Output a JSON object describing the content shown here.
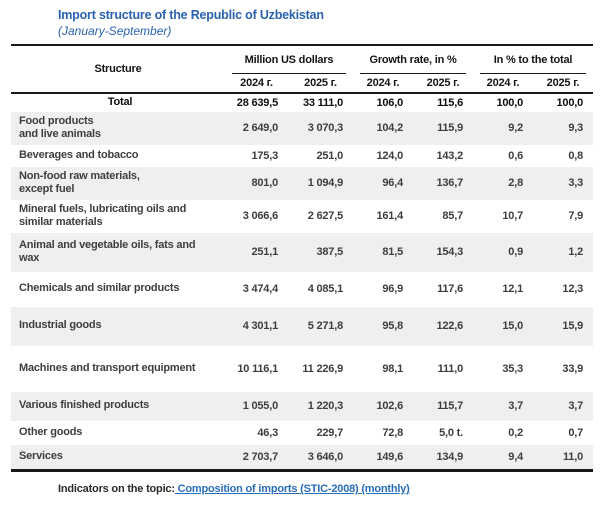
{
  "title": "Import structure of the Republic of Uzbekistan",
  "subtitle": "(January-September)",
  "colors": {
    "title_blue": "#2a62ae",
    "link_blue": "#2a6db8",
    "row_alt_bg": "#efefef",
    "border_dark": "#191919",
    "body_text": "#3e3e3e"
  },
  "table": {
    "structure_header": "Structure",
    "groups": [
      {
        "label": "Million US dollars",
        "years": [
          "2024 г.",
          "2025 г."
        ]
      },
      {
        "label": "Growth rate, in %",
        "years": [
          "2024 г.",
          "2025 г."
        ]
      },
      {
        "label": "In % to the total",
        "years": [
          "2024 г.",
          "2025 г."
        ]
      }
    ],
    "rows": [
      {
        "label": "Total",
        "is_total": true,
        "values": [
          "28 639,5",
          "33 111,0",
          "106,0",
          "115,6",
          "100,0",
          "100,0"
        ]
      },
      {
        "label": "Food products\nand live animals",
        "values": [
          "2 649,0",
          "3 070,3",
          "104,2",
          "115,9",
          "9,2",
          "9,3"
        ]
      },
      {
        "label": "Beverages and tobacco",
        "values": [
          "175,3",
          "251,0",
          "124,0",
          "143,2",
          "0,6",
          "0,8"
        ]
      },
      {
        "label": "Non-food raw materials,\nexcept fuel",
        "values": [
          "801,0",
          "1 094,9",
          "96,4",
          "136,7",
          "2,8",
          "3,3"
        ]
      },
      {
        "label": "Mineral fuels, lubricating oils and\nsimilar materials",
        "values": [
          "3 066,6",
          "2 627,5",
          "161,4",
          "85,7",
          "10,7",
          "7,9"
        ]
      },
      {
        "label": "Animal and vegetable oils, fats and\nwax",
        "values": [
          "251,1",
          "387,5",
          "81,5",
          "154,3",
          "0,9",
          "1,2"
        ]
      },
      {
        "label": "Chemicals and similar products",
        "values": [
          "3 474,4",
          "4 085,1",
          "96,9",
          "117,6",
          "12,1",
          "12,3"
        ]
      },
      {
        "label": "Industrial goods",
        "values": [
          "4 301,1",
          "5 271,8",
          "95,8",
          "122,6",
          "15,0",
          "15,9"
        ]
      },
      {
        "label": "Machines and transport equipment",
        "values": [
          "10 116,1",
          "11 226,9",
          "98,1",
          "111,0",
          "35,3",
          "33,9"
        ]
      },
      {
        "label": "Various finished products",
        "values": [
          "1 055,0",
          "1 220,3",
          "102,6",
          "115,7",
          "3,7",
          "3,7"
        ]
      },
      {
        "label": "Other goods",
        "values": [
          "46,3",
          "229,7",
          "72,8",
          "5,0 t.",
          "0,2",
          "0,7"
        ]
      },
      {
        "label": "Services",
        "values": [
          "2 703,7",
          "3 646,0",
          "149,6",
          "134,9",
          "9,4",
          "11,0"
        ]
      }
    ]
  },
  "footer": {
    "prefix": "Indicators on the topic:",
    "link_label": " Composition of imports (STIC-2008) (monthly)"
  }
}
